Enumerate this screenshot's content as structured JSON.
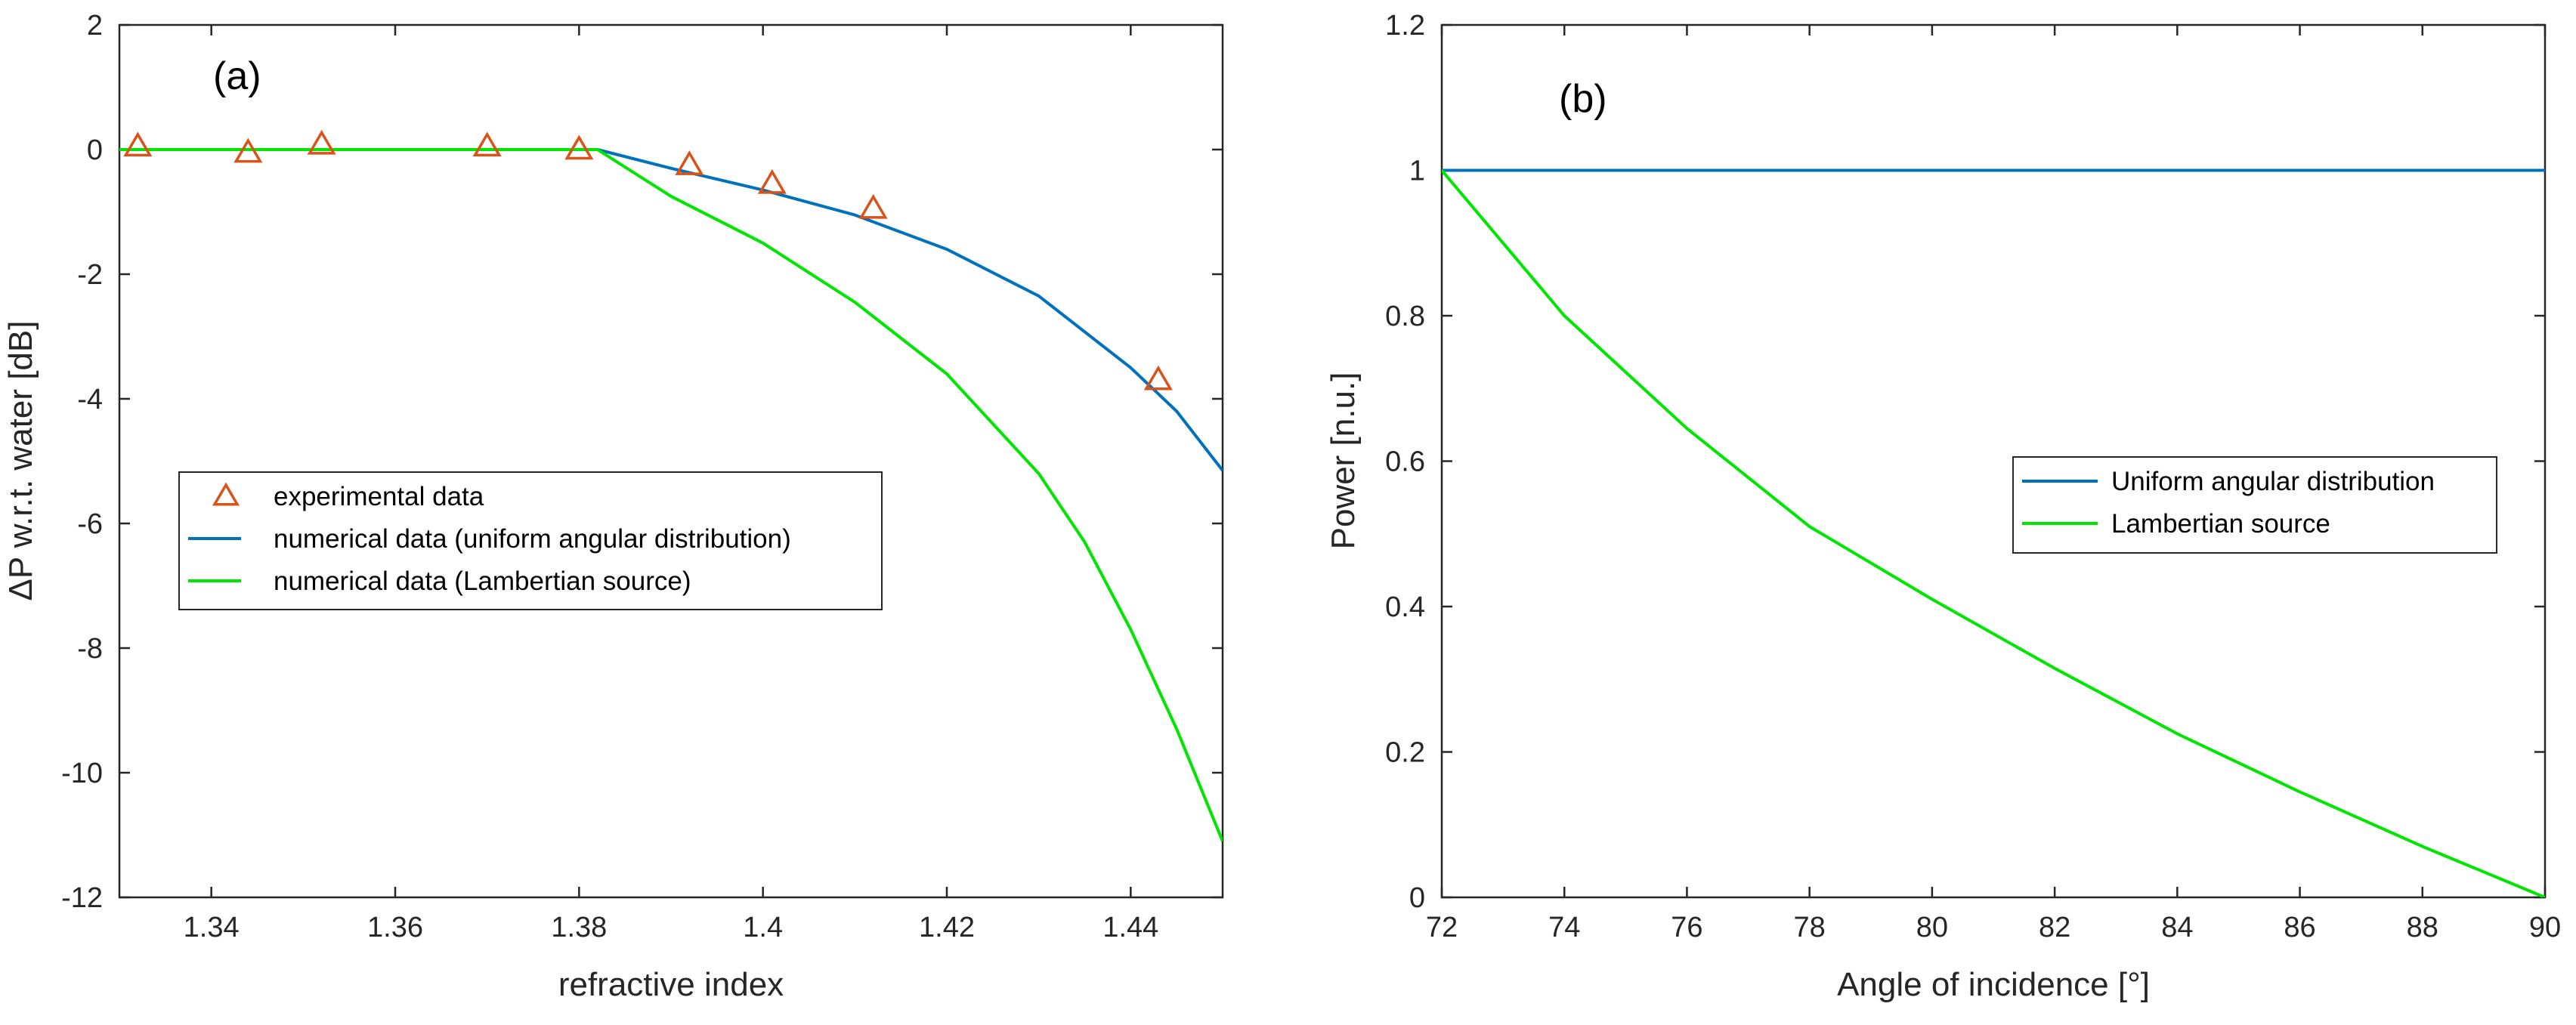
{
  "chart_data": [
    {
      "type": "line",
      "panel_label": "(a)",
      "xlabel": "refractive index",
      "ylabel": "ΔP w.r.t. water  [dB]",
      "xlim": [
        1.33,
        1.45
      ],
      "ylim": [
        -12,
        2
      ],
      "xticks": [
        1.34,
        1.36,
        1.38,
        1.4,
        1.42,
        1.44
      ],
      "xtick_labels": [
        "1.34",
        "1.36",
        "1.38",
        "1.4",
        "1.42",
        "1.44"
      ],
      "yticks": [
        -12,
        -10,
        -8,
        -6,
        -4,
        -2,
        0,
        2
      ],
      "ytick_labels": [
        "-12",
        "-10",
        "-8",
        "-6",
        "-4",
        "-2",
        "0",
        "2"
      ],
      "grid": false,
      "legend_position": "center-left",
      "series": [
        {
          "name": "experimental data",
          "kind": "scatter",
          "marker": "triangle",
          "color": "#D95319",
          "x": [
            1.332,
            1.344,
            1.352,
            1.37,
            1.38,
            1.392,
            1.401,
            1.412,
            1.443
          ],
          "y": [
            0.05,
            -0.05,
            0.08,
            0.05,
            0.0,
            -0.25,
            -0.55,
            -0.95,
            -3.7
          ]
        },
        {
          "name": "numerical data (uniform angular distribution)",
          "kind": "line",
          "color": "#0072BD",
          "x": [
            1.33,
            1.34,
            1.35,
            1.36,
            1.37,
            1.382,
            1.39,
            1.4,
            1.41,
            1.42,
            1.43,
            1.44,
            1.445,
            1.45
          ],
          "y": [
            0,
            0,
            0,
            0,
            0,
            0,
            -0.3,
            -0.65,
            -1.05,
            -1.6,
            -2.35,
            -3.5,
            -4.2,
            -5.15
          ]
        },
        {
          "name": "numerical data (Lambertian source)",
          "kind": "line",
          "color": "#00E600",
          "x": [
            1.33,
            1.34,
            1.35,
            1.36,
            1.37,
            1.382,
            1.39,
            1.4,
            1.41,
            1.42,
            1.43,
            1.435,
            1.44,
            1.445,
            1.45
          ],
          "y": [
            0,
            0,
            0,
            0,
            0,
            0,
            -0.75,
            -1.5,
            -2.45,
            -3.6,
            -5.2,
            -6.3,
            -7.7,
            -9.3,
            -11.1
          ]
        }
      ]
    },
    {
      "type": "line",
      "panel_label": "(b)",
      "xlabel": "Angle of incidence [°]",
      "ylabel": "Power  [n.u.]",
      "xlim": [
        72,
        90
      ],
      "ylim": [
        0,
        1.2
      ],
      "xticks": [
        72,
        74,
        76,
        78,
        80,
        82,
        84,
        86,
        88,
        90
      ],
      "xtick_labels": [
        "72",
        "74",
        "76",
        "78",
        "80",
        "82",
        "84",
        "86",
        "88",
        "90"
      ],
      "yticks": [
        0,
        0.2,
        0.4,
        0.6,
        0.8,
        1,
        1.2
      ],
      "ytick_labels": [
        "0",
        "0.2",
        "0.4",
        "0.6",
        "0.8",
        "1",
        "1.2"
      ],
      "grid": false,
      "legend_position": "center-right",
      "series": [
        {
          "name": "Uniform angular distribution",
          "kind": "line",
          "color": "#0072BD",
          "x": [
            72,
            90
          ],
          "y": [
            1,
            1
          ]
        },
        {
          "name": "Lambertian source",
          "kind": "line",
          "color": "#00E600",
          "x": [
            72,
            74,
            76,
            78,
            80,
            82,
            84,
            86,
            88,
            90
          ],
          "y": [
            1.0,
            0.8,
            0.645,
            0.51,
            0.41,
            0.315,
            0.225,
            0.145,
            0.07,
            0.0
          ]
        }
      ]
    }
  ]
}
